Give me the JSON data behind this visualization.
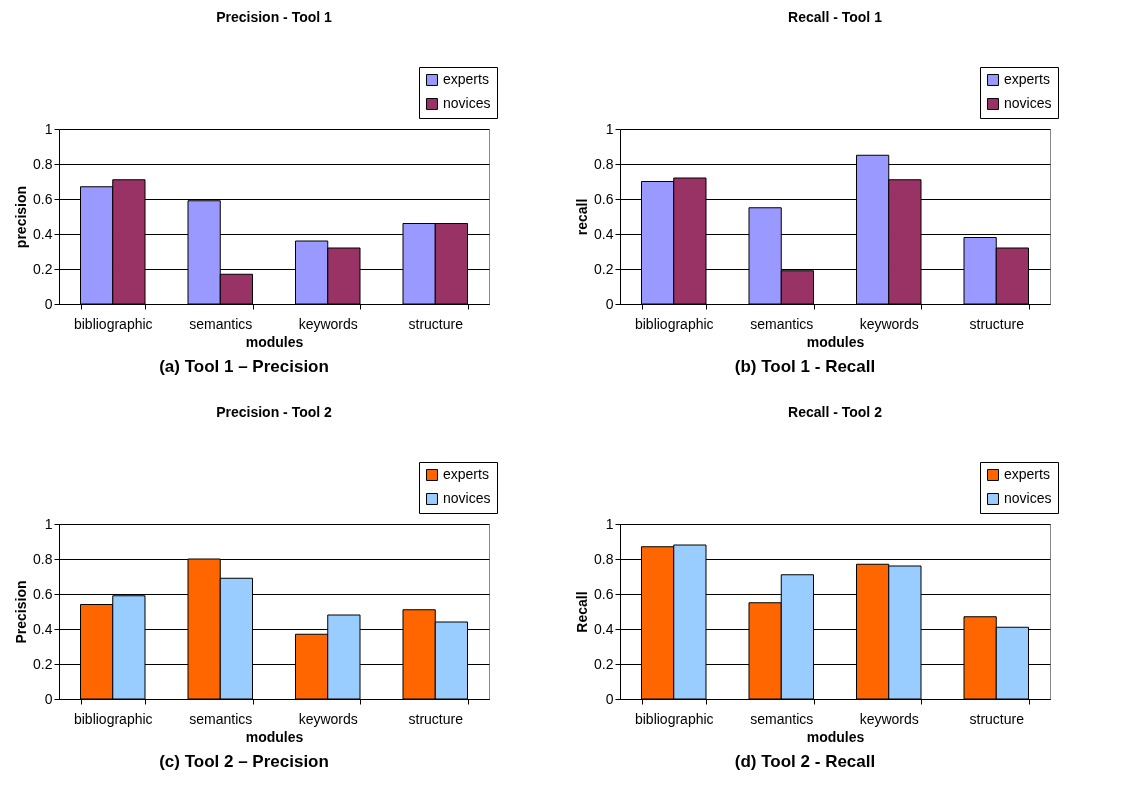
{
  "chart_data": [
    {
      "type": "bar",
      "title": "Precision - Tool 1",
      "xlabel": "modules",
      "ylabel": "precision",
      "categories": [
        "bibliographic",
        "semantics",
        "keywords",
        "structure"
      ],
      "series": [
        {
          "name": "experts",
          "color": "#9999ff",
          "values": [
            0.67,
            0.59,
            0.36,
            0.46
          ]
        },
        {
          "name": "novices",
          "color": "#993366",
          "values": [
            0.71,
            0.17,
            0.32,
            0.46
          ]
        }
      ],
      "ylim": [
        0,
        1
      ],
      "yticks": [
        0,
        0.2,
        0.4,
        0.6,
        0.8,
        1
      ],
      "grid": "y",
      "legend": "top right",
      "annotations": [
        "(a) Tool 1 – Precision"
      ]
    },
    {
      "type": "bar",
      "title": "Recall - Tool 1",
      "xlabel": "modules",
      "ylabel": "recall",
      "categories": [
        "bibliographic",
        "semantics",
        "keywords",
        "structure"
      ],
      "series": [
        {
          "name": "experts",
          "color": "#9999ff",
          "values": [
            0.7,
            0.55,
            0.85,
            0.38
          ]
        },
        {
          "name": "novices",
          "color": "#993366",
          "values": [
            0.72,
            0.19,
            0.71,
            0.32
          ]
        }
      ],
      "ylim": [
        0,
        1
      ],
      "yticks": [
        0,
        0.2,
        0.4,
        0.6,
        0.8,
        1
      ],
      "grid": "y",
      "legend": "top right",
      "annotations": [
        "(b) Tool 1 - Recall"
      ]
    },
    {
      "type": "bar",
      "title": "Precision - Tool 2",
      "xlabel": "modules",
      "ylabel": "Precision",
      "categories": [
        "bibliographic",
        "semantics",
        "keywords",
        "structure"
      ],
      "series": [
        {
          "name": "experts",
          "color": "#ff6600",
          "values": [
            0.54,
            0.8,
            0.37,
            0.51
          ]
        },
        {
          "name": "novices",
          "color": "#99ccff",
          "values": [
            0.59,
            0.69,
            0.48,
            0.44
          ]
        }
      ],
      "ylim": [
        0,
        1
      ],
      "yticks": [
        0,
        0.2,
        0.4,
        0.6,
        0.8,
        1
      ],
      "grid": "y",
      "legend": "top right",
      "annotations": [
        "(c) Tool 2 – Precision"
      ]
    },
    {
      "type": "bar",
      "title": "Recall - Tool 2",
      "xlabel": "modules",
      "ylabel": "Recall",
      "categories": [
        "bibliographic",
        "semantics",
        "keywords",
        "structure"
      ],
      "series": [
        {
          "name": "experts",
          "color": "#ff6600",
          "values": [
            0.87,
            0.55,
            0.77,
            0.47
          ]
        },
        {
          "name": "novices",
          "color": "#99ccff",
          "values": [
            0.88,
            0.71,
            0.76,
            0.41
          ]
        }
      ],
      "ylim": [
        0,
        1
      ],
      "yticks": [
        0,
        0.2,
        0.4,
        0.6,
        0.8,
        1
      ],
      "grid": "y",
      "legend": "top right",
      "annotations": [
        "(d) Tool 2 - Recall"
      ]
    }
  ]
}
